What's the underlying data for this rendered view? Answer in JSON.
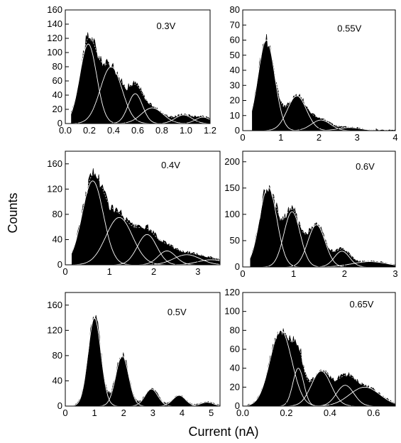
{
  "figure": {
    "ylabel": "Counts",
    "xlabel": "Current (nA)"
  },
  "chart_data": [
    {
      "type": "area",
      "annotation": "0.3V",
      "xlim": [
        0,
        1.2
      ],
      "ylim": [
        0,
        160
      ],
      "xticks": [
        "0.0",
        "0.2",
        "0.4",
        "0.6",
        "0.8",
        "1.0",
        "1.2"
      ],
      "yticks": [
        "0",
        "20",
        "40",
        "60",
        "80",
        "100",
        "120",
        "140",
        "160"
      ],
      "fits": [
        {
          "center": 0.19,
          "amplitude": 112,
          "width": 0.07
        },
        {
          "center": 0.38,
          "amplitude": 80,
          "width": 0.09
        },
        {
          "center": 0.58,
          "amplitude": 42,
          "width": 0.06
        },
        {
          "center": 0.72,
          "amplitude": 22,
          "width": 0.09
        },
        {
          "center": 0.98,
          "amplitude": 12,
          "width": 0.07
        },
        {
          "center": 1.14,
          "amplitude": 9,
          "width": 0.06
        }
      ],
      "histogram_start": 0.05
    },
    {
      "type": "area",
      "annotation": "0.55V",
      "xlim": [
        0,
        4
      ],
      "ylim": [
        0,
        80
      ],
      "xticks": [
        "0",
        "1",
        "2",
        "3",
        "4"
      ],
      "yticks": [
        "0",
        "10",
        "20",
        "30",
        "40",
        "50",
        "60",
        "70",
        "80"
      ],
      "fits": [
        {
          "center": 0.62,
          "amplitude": 60,
          "width": 0.22
        },
        {
          "center": 1.42,
          "amplitude": 23,
          "width": 0.25
        },
        {
          "center": 2.05,
          "amplitude": 7,
          "width": 0.25
        },
        {
          "center": 2.8,
          "amplitude": 2,
          "width": 0.3
        }
      ],
      "histogram_start": 0.25
    },
    {
      "type": "area",
      "annotation": "0.4V",
      "xlim": [
        0,
        3.5
      ],
      "ylim": [
        0,
        180
      ],
      "xticks": [
        "0",
        "1",
        "2",
        "3"
      ],
      "yticks": [
        "0",
        "40",
        "80",
        "120",
        "160"
      ],
      "fits": [
        {
          "center": 0.62,
          "amplitude": 133,
          "width": 0.24
        },
        {
          "center": 1.22,
          "amplitude": 75,
          "width": 0.3
        },
        {
          "center": 1.85,
          "amplitude": 48,
          "width": 0.22
        },
        {
          "center": 2.3,
          "amplitude": 22,
          "width": 0.2
        },
        {
          "center": 2.75,
          "amplitude": 16,
          "width": 0.3
        },
        {
          "center": 3.3,
          "amplitude": 8,
          "width": 0.3
        }
      ],
      "histogram_start": 0.15
    },
    {
      "type": "area",
      "annotation": "0.6V",
      "xlim": [
        0,
        3
      ],
      "ylim": [
        0,
        220
      ],
      "xticks": [
        "0",
        "1",
        "2",
        "3"
      ],
      "yticks": [
        "0",
        "50",
        "100",
        "150",
        "200"
      ],
      "fits": [
        {
          "center": 0.5,
          "amplitude": 152,
          "width": 0.17
        },
        {
          "center": 0.97,
          "amplitude": 105,
          "width": 0.16
        },
        {
          "center": 1.45,
          "amplitude": 80,
          "width": 0.17
        },
        {
          "center": 1.95,
          "amplitude": 30,
          "width": 0.15
        },
        {
          "center": 2.5,
          "amplitude": 10,
          "width": 0.35
        }
      ],
      "histogram_start": 0.15
    },
    {
      "type": "area",
      "annotation": "0.5V",
      "xlim": [
        0,
        5.3
      ],
      "ylim": [
        0,
        180
      ],
      "xticks": [
        "0",
        "1",
        "2",
        "3",
        "4",
        "5"
      ],
      "yticks": [
        "0",
        "40",
        "80",
        "120",
        "160"
      ],
      "fits": [
        {
          "center": 1.0,
          "amplitude": 140,
          "width": 0.22
        },
        {
          "center": 1.95,
          "amplitude": 80,
          "width": 0.22
        },
        {
          "center": 2.95,
          "amplitude": 27,
          "width": 0.22
        },
        {
          "center": 3.9,
          "amplitude": 17,
          "width": 0.22
        },
        {
          "center": 4.85,
          "amplitude": 6,
          "width": 0.22
        }
      ],
      "histogram_start": 0.3
    },
    {
      "type": "area",
      "annotation": "0.65V",
      "xlim": [
        0,
        0.7
      ],
      "ylim": [
        0,
        120
      ],
      "xticks": [
        "0.0",
        "0.2",
        "0.4",
        "0.6"
      ],
      "yticks": [
        "0",
        "20",
        "40",
        "60",
        "80",
        "100",
        "120"
      ],
      "fits": [
        {
          "center": 0.175,
          "amplitude": 80,
          "width": 0.05
        },
        {
          "center": 0.255,
          "amplitude": 40,
          "width": 0.025
        },
        {
          "center": 0.36,
          "amplitude": 37,
          "width": 0.045
        },
        {
          "center": 0.47,
          "amplitude": 22,
          "width": 0.04
        },
        {
          "center": 0.56,
          "amplitude": 20,
          "width": 0.07
        }
      ],
      "histogram_start": 0.02
    }
  ]
}
